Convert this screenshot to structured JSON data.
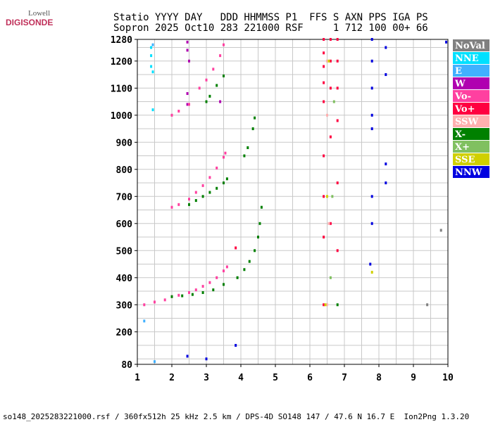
{
  "header": {
    "logo_top": "Lowell",
    "logo_bottom": "DIGISONDE",
    "line1": "Statio YYYY DAY   DDD HHMMSS P1  FFS S AXN PPS IGA PS",
    "line2": "Sopron 2025 Oct10 283 221000 RSF     1 712 100 00+ 66"
  },
  "footer": "so148_2025283221000.rsf / 360fx512h 25 kHz 2.5 km / DPS-4D SO148 147 / 47.6 N 16.7 E  Ion2Png 1.3.20",
  "chart_data": {
    "type": "scatter",
    "xlim": [
      1,
      10
    ],
    "ylim": [
      80,
      1280
    ],
    "xticks": [
      1,
      2,
      3,
      4,
      5,
      6,
      7,
      8,
      9,
      10
    ],
    "yticks": [
      80,
      200,
      300,
      400,
      500,
      600,
      700,
      800,
      900,
      1000,
      1100,
      1200,
      1280
    ],
    "xgrid": [
      1,
      1.5,
      2,
      2.5,
      3,
      3.5,
      4,
      4.5,
      5,
      5.5,
      6,
      6.5,
      7,
      7.5,
      8,
      8.5,
      9,
      9.5,
      10
    ],
    "ygrid": [
      100,
      150,
      200,
      250,
      300,
      350,
      400,
      450,
      500,
      550,
      600,
      650,
      700,
      750,
      800,
      850,
      900,
      950,
      1000,
      1050,
      1100,
      1150,
      1200,
      1250
    ],
    "series": [
      {
        "name": "NoVal",
        "color": "#808080",
        "x": [
          9.8,
          9.4
        ],
        "values": [
          575,
          300
        ]
      },
      {
        "name": "NNE",
        "color": "#00e0ff",
        "x": [
          1.4,
          1.4,
          1.4,
          1.45,
          1.45
        ],
        "values": [
          1250,
          1220,
          1180,
          1160,
          1020
        ]
      },
      {
        "name": "E",
        "color": "#40b0ff",
        "x": [
          1.45,
          1.2,
          1.5
        ],
        "values": [
          1260,
          240,
          90
        ]
      },
      {
        "name": "W",
        "color": "#b000b0",
        "x": [
          2.45,
          2.45,
          2.5,
          2.45,
          2.45,
          3.4
        ],
        "values": [
          1270,
          1240,
          1200,
          1080,
          1040,
          1050
        ]
      },
      {
        "name": "Vo-",
        "color": "#ff40a0",
        "x": [
          1.2,
          1.5,
          1.8,
          2.0,
          2.2,
          2.5,
          2.7,
          2.9,
          3.1,
          3.3,
          3.5,
          3.6,
          2.0,
          2.2,
          2.5,
          2.7,
          2.9,
          3.1,
          3.3,
          3.5,
          3.55,
          2.0,
          2.2,
          2.5,
          2.8,
          3.0,
          3.2,
          3.4,
          3.5
        ],
        "values": [
          300,
          310,
          318,
          330,
          335,
          345,
          355,
          368,
          382,
          400,
          425,
          440,
          660,
          670,
          690,
          715,
          740,
          770,
          805,
          845,
          860,
          1000,
          1015,
          1040,
          1100,
          1130,
          1170,
          1220,
          1260
        ]
      },
      {
        "name": "Vo+",
        "color": "#ff0040",
        "x": [
          6.4,
          6.4,
          6.4,
          6.4,
          6.4,
          6.6,
          6.6,
          6.6,
          6.6,
          6.8,
          6.8,
          6.8,
          6.8,
          6.4,
          6.4,
          6.4,
          6.4,
          6.6,
          6.8,
          6.8,
          3.85
        ],
        "values": [
          1280,
          1230,
          1180,
          1120,
          1050,
          1280,
          1200,
          1100,
          920,
          1280,
          1200,
          1100,
          980,
          850,
          700,
          550,
          300,
          600,
          750,
          500,
          510
        ]
      },
      {
        "name": "SSW",
        "color": "#ffb0b0",
        "x": [
          6.5,
          6.5,
          6.55,
          6.5
        ],
        "values": [
          1200,
          1000,
          600,
          300
        ]
      },
      {
        "name": "X-",
        "color": "#008000",
        "x": [
          2.0,
          2.3,
          2.6,
          2.9,
          3.2,
          3.5,
          3.9,
          4.1,
          4.25,
          4.4,
          4.5,
          4.55,
          4.6,
          2.5,
          2.7,
          2.9,
          3.1,
          3.3,
          3.5,
          3.6,
          4.1,
          4.2,
          4.35,
          4.4,
          3.0,
          3.1,
          3.3,
          3.5,
          6.8
        ],
        "values": [
          330,
          333,
          338,
          345,
          355,
          375,
          400,
          430,
          460,
          500,
          550,
          600,
          660,
          670,
          685,
          700,
          715,
          730,
          750,
          765,
          850,
          880,
          950,
          990,
          1050,
          1070,
          1110,
          1145,
          300
        ]
      },
      {
        "name": "X+",
        "color": "#80c060",
        "x": [
          6.65,
          6.7,
          6.6
        ],
        "values": [
          700,
          1050,
          400
        ]
      },
      {
        "name": "SSE",
        "color": "#d0d000",
        "x": [
          6.45,
          6.55,
          6.5,
          7.8
        ],
        "values": [
          300,
          1200,
          700,
          420
        ]
      },
      {
        "name": "NNW",
        "color": "#0000e0",
        "x": [
          7.8,
          7.8,
          7.8,
          7.8,
          7.8,
          8.2,
          8.2,
          8.2,
          8.2,
          7.8,
          7.8,
          7.75,
          3.85,
          3.0,
          2.45,
          9.95
        ],
        "values": [
          1280,
          1200,
          1100,
          1000,
          950,
          1250,
          1150,
          820,
          750,
          700,
          600,
          450,
          150,
          100,
          110,
          1270
        ]
      }
    ]
  }
}
